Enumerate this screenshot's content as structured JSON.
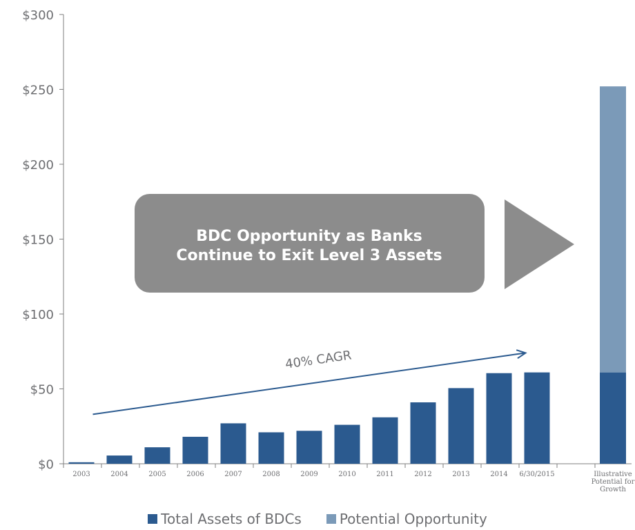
{
  "chart_data": {
    "type": "bar",
    "stacked": true,
    "categories": [
      "2003",
      "2004",
      "2005",
      "2006",
      "2007",
      "2008",
      "2009",
      "2010",
      "2011",
      "2012",
      "2013",
      "2014",
      "6/30/2015",
      "",
      "Illustrative Potential for Growth"
    ],
    "category_lines": [
      [
        "2003"
      ],
      [
        "2004"
      ],
      [
        "2005"
      ],
      [
        "2006"
      ],
      [
        "2007"
      ],
      [
        "2008"
      ],
      [
        "2009"
      ],
      [
        "2010"
      ],
      [
        "2011"
      ],
      [
        "2012"
      ],
      [
        "2013"
      ],
      [
        "2014"
      ],
      [
        "6/30/2015"
      ],
      [],
      [
        "Illustrative",
        "Potential for",
        "Growth"
      ]
    ],
    "series": [
      {
        "name": "Total Assets of BDCs",
        "color": "#2b5a8f",
        "values": [
          1,
          5.5,
          11,
          18,
          27,
          21,
          22,
          26,
          31,
          41,
          50.5,
          60.5,
          61,
          null,
          61
        ]
      },
      {
        "name": "Potential Opportunity",
        "color": "#7b9ab8",
        "values": [
          null,
          null,
          null,
          null,
          null,
          null,
          null,
          null,
          null,
          null,
          null,
          null,
          null,
          null,
          191
        ]
      }
    ],
    "ylim": [
      0,
      300
    ],
    "y_ticks": [
      0,
      50,
      100,
      150,
      200,
      250,
      300
    ],
    "y_tick_labels": [
      "$0",
      "$50",
      "$100",
      "$150",
      "$200",
      "$250",
      "$300"
    ],
    "grid": false,
    "legend_position": "bottom",
    "annotations": {
      "cagr_label": "40% CAGR",
      "cagr_arrow": {
        "from": [
          0.3,
          33
        ],
        "to": [
          11.7,
          74
        ]
      },
      "callout_line1": "BDC Opportunity as Banks",
      "callout_line2": "Continue to Exit Level 3 Assets"
    }
  },
  "colors": {
    "axis": "#7f7f7f",
    "tick_text": "#6d6e71",
    "callout_box": "#8c8c8c",
    "arrow": "#2b5a8f"
  }
}
